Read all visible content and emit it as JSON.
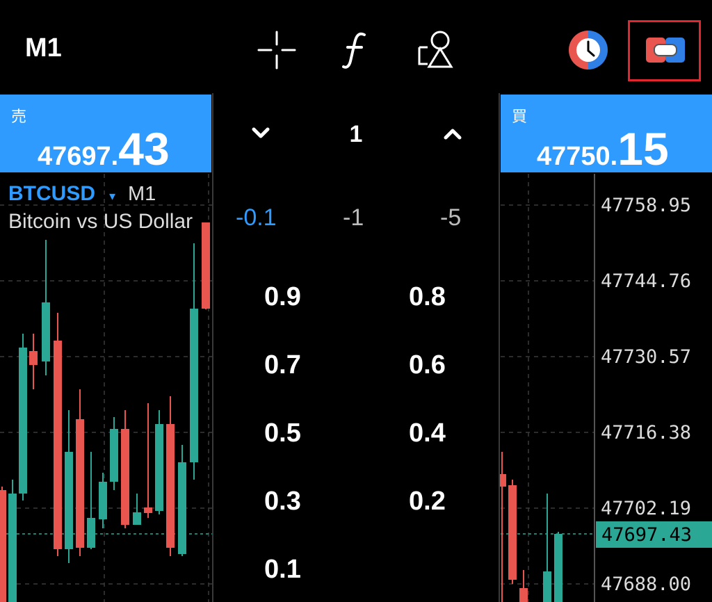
{
  "toolbar": {
    "timeframe": "M1",
    "icons": [
      "crosshair-icon",
      "function-icon",
      "objects-icon",
      "clock-icon",
      "trade-panel-toggle-icon"
    ]
  },
  "sell": {
    "label": "売",
    "price_small": "47697.",
    "price_big": "43"
  },
  "buy": {
    "label": "買",
    "price_small": "47750.",
    "price_big": "15"
  },
  "chart": {
    "symbol": "BTCUSD",
    "symbol_caret": "▾",
    "timeframe": "M1",
    "description": "Bitcoin vs US Dollar",
    "price_axis": [
      "47758.95",
      "47744.76",
      "47730.57",
      "47716.38",
      "47702.19",
      "47688.00"
    ],
    "current_price": "47697.43",
    "colors": {
      "bull": "#2aa795",
      "bear": "#e8564f",
      "grid": "#3a3a3a"
    }
  },
  "volume_panel": {
    "step_value": "1",
    "increments": [
      "-0.1",
      "-1",
      "-5"
    ],
    "values": [
      "0.9",
      "0.8",
      "0.7",
      "0.6",
      "0.5",
      "0.4",
      "0.3",
      "0.2",
      "0.1"
    ]
  },
  "colors": {
    "accent": "#2f9bff",
    "highlight": "#e0262e"
  }
}
